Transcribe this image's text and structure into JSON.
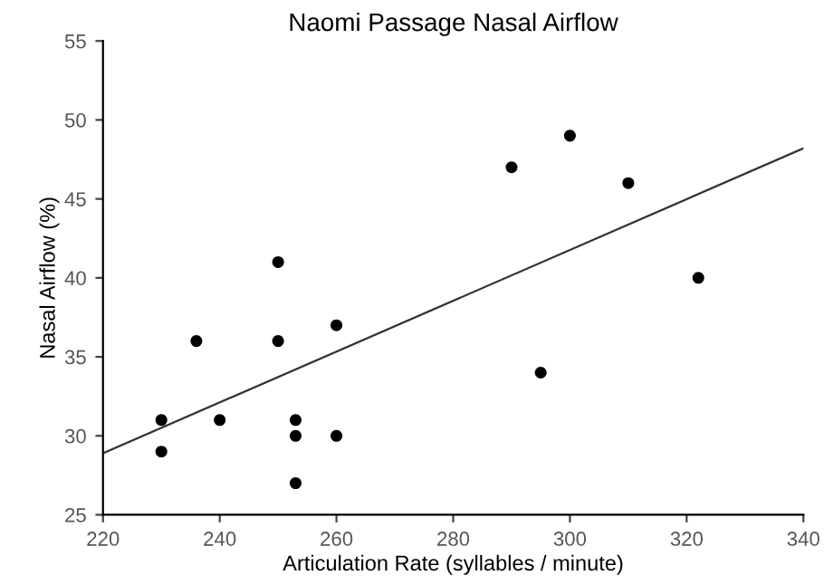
{
  "chart_data": {
    "type": "scatter",
    "title": "Naomi Passage Nasal Airflow",
    "xlabel": "Articulation Rate (syllables / minute)",
    "ylabel": "Nasal Airflow (%)",
    "xlim": [
      220,
      340
    ],
    "ylim": [
      25,
      55
    ],
    "xticks": [
      220,
      240,
      260,
      280,
      300,
      320,
      340
    ],
    "yticks": [
      25,
      30,
      35,
      40,
      45,
      50,
      55
    ],
    "grid": false,
    "legend": false,
    "series": [
      {
        "color": "#000000",
        "marker": "circle",
        "x": [
          230,
          230,
          236,
          240,
          250,
          250,
          253,
          253,
          253,
          260,
          260,
          290,
          295,
          300,
          310,
          322
        ],
        "values": [
          31,
          29,
          36,
          31,
          41,
          36,
          31,
          30,
          27,
          37,
          30,
          47,
          34,
          49,
          46,
          40
        ]
      },
      {
        "type": "line",
        "color": "#333333",
        "line_style": "solid",
        "x": [
          220,
          340
        ],
        "values": [
          28.9,
          48.2
        ]
      }
    ]
  }
}
